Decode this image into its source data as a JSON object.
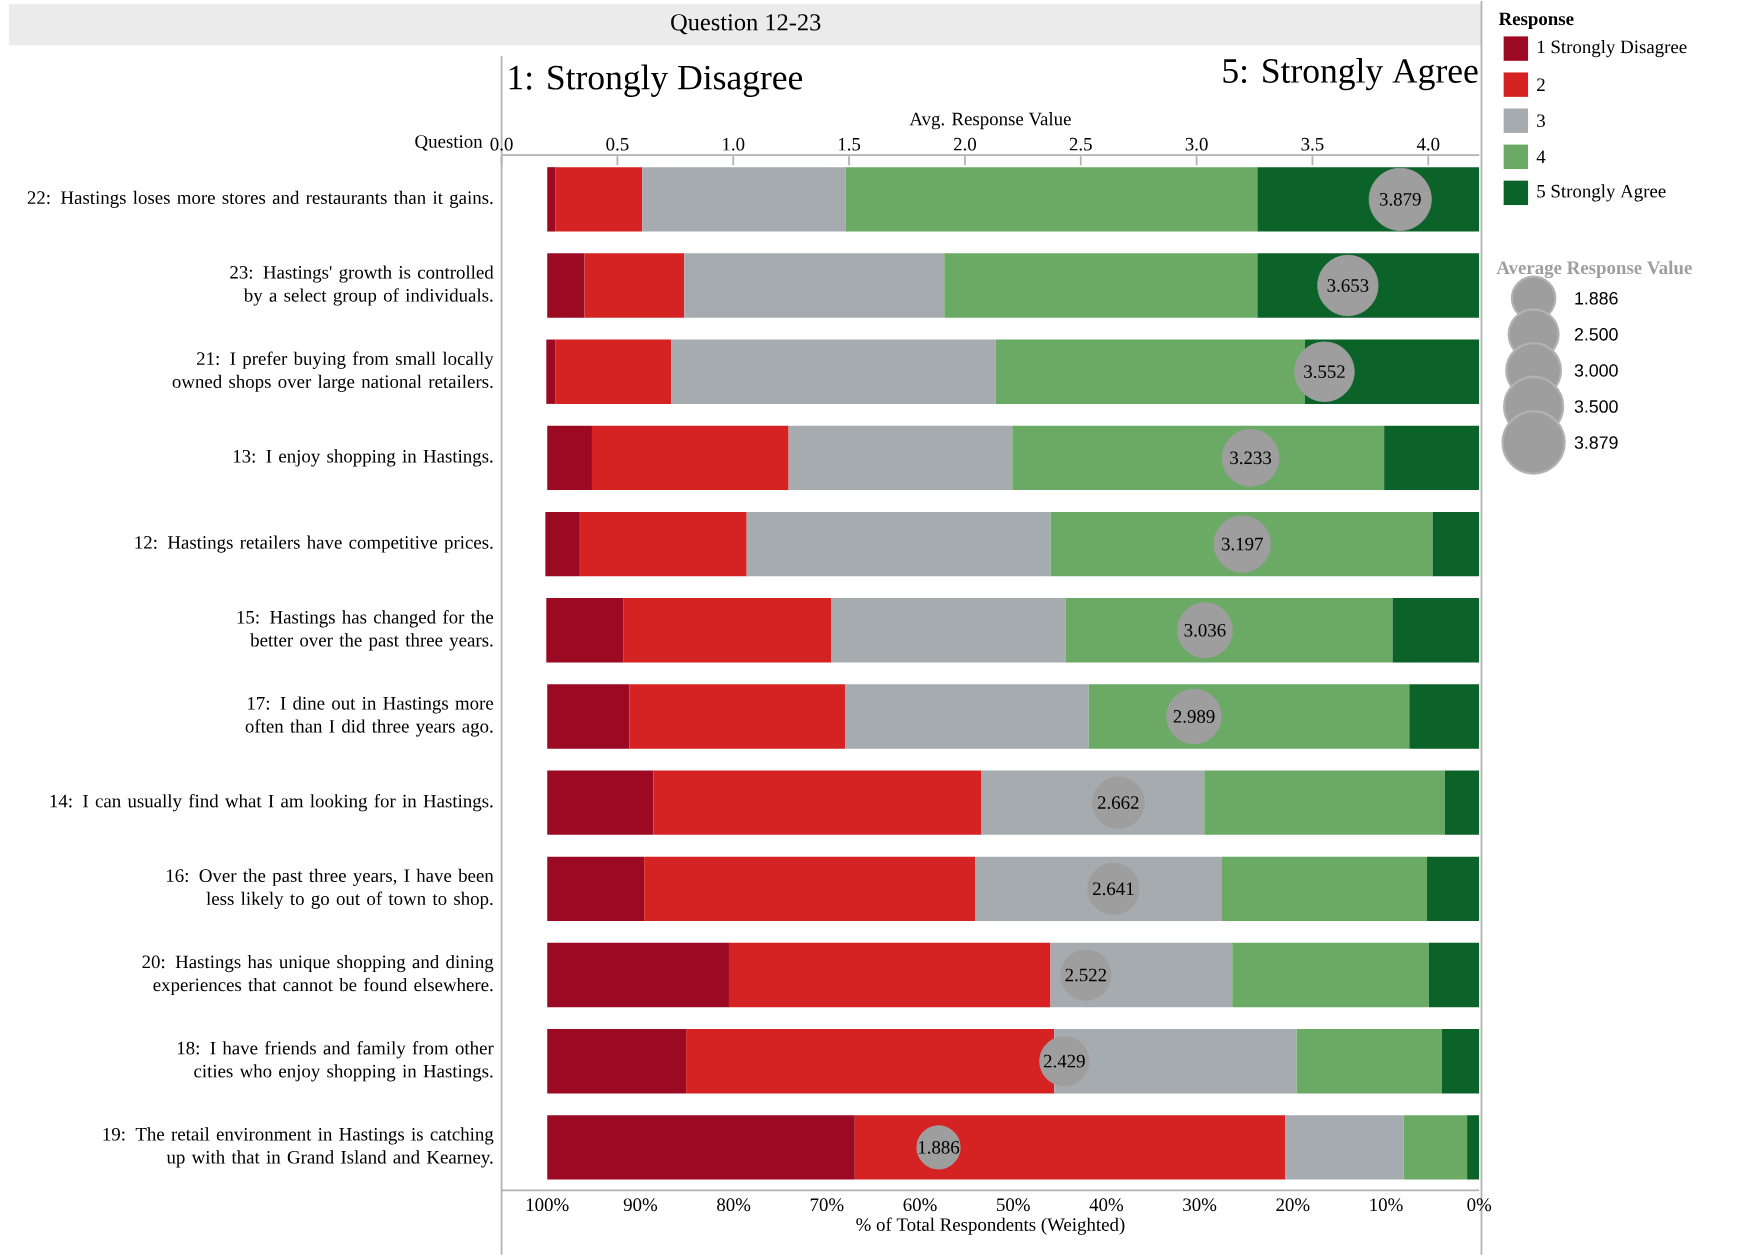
{
  "chart_data": {
    "type": "bar",
    "orientation": "horizontal",
    "stacked": true,
    "title": "Question 12-23",
    "annotations": [
      "1: Strongly Disagree",
      "5: Strongly Agree"
    ],
    "ylabel": "Question",
    "xlabel": "% of Total Respondents (Weighted)",
    "x2label": "Avg. Response Value",
    "legend_title": "Response",
    "legend": "right",
    "categories": [
      "22: Hastings loses more stores and restaurants than it gains.",
      "23: Hastings' growth is controlled by a select group of individuals.",
      "21: I prefer buying from small locally owned shops over large national retailers.",
      "13: I enjoy shopping in Hastings.",
      "12: Hastings retailers have competitive prices.",
      "15: Hastings has changed for the better over the past three years.",
      "17: I dine out in Hastings more often than I did three years ago.",
      "14: I can usually find what I am looking for in Hastings.",
      "16: Over the past three years, I have been less likely to go out of town to shop.",
      "20: Hastings has unique shopping and dining experiences that cannot be found elsewhere.",
      "18: I have friends and family from other cities who enjoy shopping in Hastings.",
      "19: The retail environment in Hastings is catching up with that in Grand Island and Kearney."
    ],
    "xlim": [
      104.9,
      0
    ],
    "xticks": [
      {
        "value": 100,
        "label": "100%"
      },
      {
        "value": 90,
        "label": "90%"
      },
      {
        "value": 80,
        "label": "80%"
      },
      {
        "value": 70,
        "label": "70%"
      },
      {
        "value": 60,
        "label": "60%"
      },
      {
        "value": 50,
        "label": "50%"
      },
      {
        "value": 40,
        "label": "40%"
      },
      {
        "value": 30,
        "label": "30%"
      },
      {
        "value": 20,
        "label": "20%"
      },
      {
        "value": 10,
        "label": "10%"
      },
      {
        "value": 0,
        "label": "0%"
      }
    ],
    "x2lim": [
      0,
      4.22
    ],
    "x2ticks": [
      {
        "value": 0,
        "label": "0.0"
      },
      0.5,
      {
        "value": 1,
        "label": "1.0"
      },
      1.5,
      {
        "value": 2,
        "label": "2.0"
      },
      2.5,
      {
        "value": 3,
        "label": "3.0"
      },
      3.5,
      {
        "value": 4,
        "label": "4.0"
      }
    ],
    "series": [
      {
        "name": "5 Strongly Agree",
        "color": "#0b6329",
        "values": [
          23.8,
          23.8,
          18.7,
          10.2,
          5.0,
          9.3,
          7.5,
          3.7,
          5.6,
          5.4,
          4.0,
          1.3
        ]
      },
      {
        "name": "4",
        "color": "#6aaa64",
        "values": [
          44.2,
          33.6,
          33.2,
          39.9,
          41.0,
          35.1,
          34.4,
          25.8,
          22.0,
          21.1,
          15.6,
          6.8
        ]
      },
      {
        "name": "3",
        "color": "#a5abaf",
        "values": [
          21.8,
          27.9,
          34.8,
          24.0,
          32.6,
          25.1,
          26.1,
          23.9,
          26.5,
          19.5,
          26.0,
          12.7
        ]
      },
      {
        "name": "2",
        "color": "#d42322",
        "values": [
          9.3,
          10.7,
          12.4,
          21.1,
          17.9,
          22.3,
          23.2,
          35.2,
          35.5,
          34.5,
          39.5,
          46.2
        ]
      },
      {
        "name": "1 Strongly Disagree",
        "color": "#9b0a22",
        "values": [
          0.9,
          4.0,
          1.0,
          4.8,
          3.7,
          8.3,
          8.8,
          11.4,
          10.4,
          19.5,
          14.9,
          33.0
        ]
      },
      {
        "type": "bubble",
        "axis": "x2",
        "name": "Average Response Value",
        "color": "#9e9e9e",
        "values": [
          3.879,
          3.653,
          3.552,
          3.233,
          3.197,
          3.036,
          2.989,
          2.662,
          2.641,
          2.522,
          2.429,
          1.886
        ],
        "sizes": [
          3.879,
          3.653,
          3.552,
          3.233,
          3.197,
          3.036,
          2.989,
          2.662,
          2.641,
          2.522,
          2.429,
          1.886
        ],
        "value_labels": [
          "3.879",
          "3.653",
          "3.552",
          "3.233",
          "3.197",
          "3.036",
          "2.989",
          "2.662",
          "2.641",
          "2.522",
          "2.429",
          "1.886"
        ]
      }
    ],
    "size_legend": [
      1.886,
      {
        "value": 2.5,
        "label": "2.500"
      },
      {
        "value": 3,
        "label": "3.000"
      },
      {
        "value": 3.5,
        "label": "3.500"
      },
      3.879
    ]
  }
}
